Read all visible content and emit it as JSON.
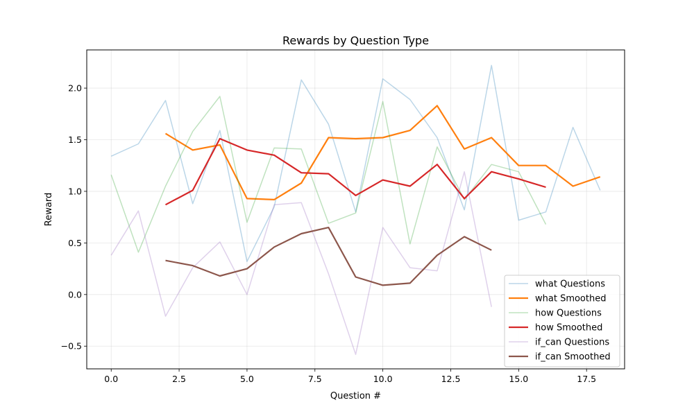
{
  "chart_data": {
    "type": "line",
    "title": "Rewards by Question Type",
    "xlabel": "Question #",
    "ylabel": "Reward",
    "xlim": [
      -0.9,
      18.9
    ],
    "ylim": [
      -0.72,
      2.37
    ],
    "xticks": [
      0.0,
      2.5,
      5.0,
      7.5,
      10.0,
      12.5,
      15.0,
      17.5
    ],
    "xtick_labels": [
      "0.0",
      "2.5",
      "5.0",
      "7.5",
      "10.0",
      "12.5",
      "15.0",
      "17.5"
    ],
    "yticks": [
      -0.5,
      0.0,
      0.5,
      1.0,
      1.5,
      2.0
    ],
    "ytick_labels": [
      "−0.5",
      "0.0",
      "0.5",
      "1.0",
      "1.5",
      "2.0"
    ],
    "grid": true,
    "legend_position": "lower-right",
    "series": [
      {
        "name": "what Questions",
        "color": "#1f77b4",
        "opacity": 0.3,
        "width": 1.5,
        "x": [
          0,
          1,
          2,
          3,
          4,
          5,
          6,
          7,
          8,
          9,
          10,
          11,
          12,
          13,
          14,
          15,
          16,
          17,
          18
        ],
        "y": [
          1.34,
          1.46,
          1.88,
          0.88,
          1.59,
          0.32,
          0.85,
          2.08,
          1.65,
          0.8,
          2.09,
          1.89,
          1.52,
          0.82,
          2.22,
          0.72,
          0.8,
          1.62,
          1.01
        ]
      },
      {
        "name": "what Smoothed",
        "color": "#ff7f0e",
        "opacity": 1.0,
        "width": 2.2,
        "x": [
          2,
          3,
          4,
          5,
          6,
          7,
          8,
          9,
          10,
          11,
          12,
          13,
          14,
          15,
          16,
          17,
          18
        ],
        "y": [
          1.56,
          1.4,
          1.45,
          0.93,
          0.92,
          1.08,
          1.52,
          1.51,
          1.52,
          1.59,
          1.83,
          1.41,
          1.52,
          1.25,
          1.25,
          1.05,
          1.14
        ]
      },
      {
        "name": "how Questions",
        "color": "#2ca02c",
        "opacity": 0.3,
        "width": 1.5,
        "x": [
          0,
          1,
          2,
          3,
          4,
          5,
          6,
          7,
          8,
          9,
          10,
          11,
          12,
          13,
          14,
          15,
          16
        ],
        "y": [
          1.16,
          0.41,
          1.05,
          1.58,
          1.92,
          0.7,
          1.42,
          1.41,
          0.69,
          0.79,
          1.87,
          0.49,
          1.43,
          0.92,
          1.26,
          1.19,
          0.68
        ]
      },
      {
        "name": "how Smoothed",
        "color": "#d62728",
        "opacity": 1.0,
        "width": 2.2,
        "x": [
          2,
          3,
          4,
          5,
          6,
          7,
          8,
          9,
          10,
          11,
          12,
          13,
          14,
          15,
          16
        ],
        "y": [
          0.87,
          1.01,
          1.51,
          1.4,
          1.35,
          1.18,
          1.17,
          0.96,
          1.11,
          1.05,
          1.26,
          0.93,
          1.19,
          1.12,
          1.04
        ]
      },
      {
        "name": "if_can Questions",
        "color": "#9467bd",
        "opacity": 0.3,
        "width": 1.5,
        "x": [
          0,
          1,
          2,
          3,
          4,
          5,
          6,
          7,
          8,
          9,
          10,
          11,
          12,
          13,
          14
        ],
        "y": [
          0.38,
          0.81,
          -0.21,
          0.26,
          0.51,
          0.0,
          0.87,
          0.89,
          0.2,
          -0.58,
          0.65,
          0.26,
          0.23,
          1.19,
          -0.12
        ]
      },
      {
        "name": "if_can Smoothed",
        "color": "#8c564b",
        "opacity": 1.0,
        "width": 2.2,
        "x": [
          2,
          3,
          4,
          5,
          6,
          7,
          8,
          9,
          10,
          11,
          12,
          13,
          14
        ],
        "y": [
          0.33,
          0.28,
          0.18,
          0.25,
          0.46,
          0.59,
          0.65,
          0.17,
          0.09,
          0.11,
          0.38,
          0.56,
          0.43
        ]
      }
    ]
  }
}
